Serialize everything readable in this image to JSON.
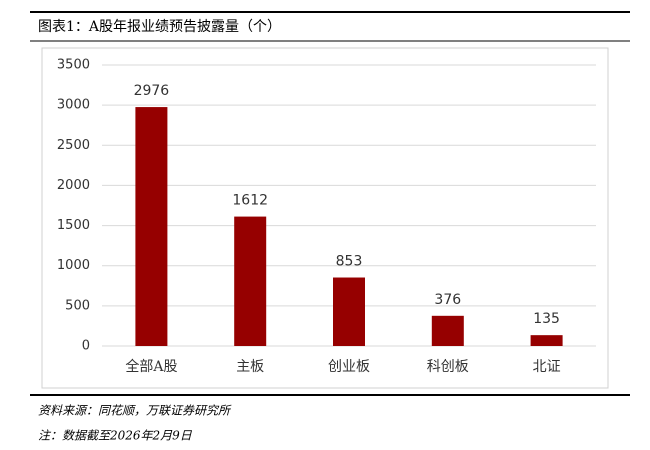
{
  "chart_data": {
    "type": "bar",
    "title": "图表1：A股年报业绩预告披露量（个）",
    "categories": [
      "全部A股",
      "主板",
      "创业板",
      "科创板",
      "北证"
    ],
    "values": [
      2976,
      1612,
      853,
      376,
      135
    ],
    "color": "#960000",
    "ylim": [
      0,
      3500
    ],
    "yticks": [
      0,
      500,
      1000,
      1500,
      2000,
      2500,
      3000,
      3500
    ],
    "grid": true,
    "source": "资料来源：同花顺，万联证券研究所",
    "note": "注：数据截至2026年2月9日"
  }
}
